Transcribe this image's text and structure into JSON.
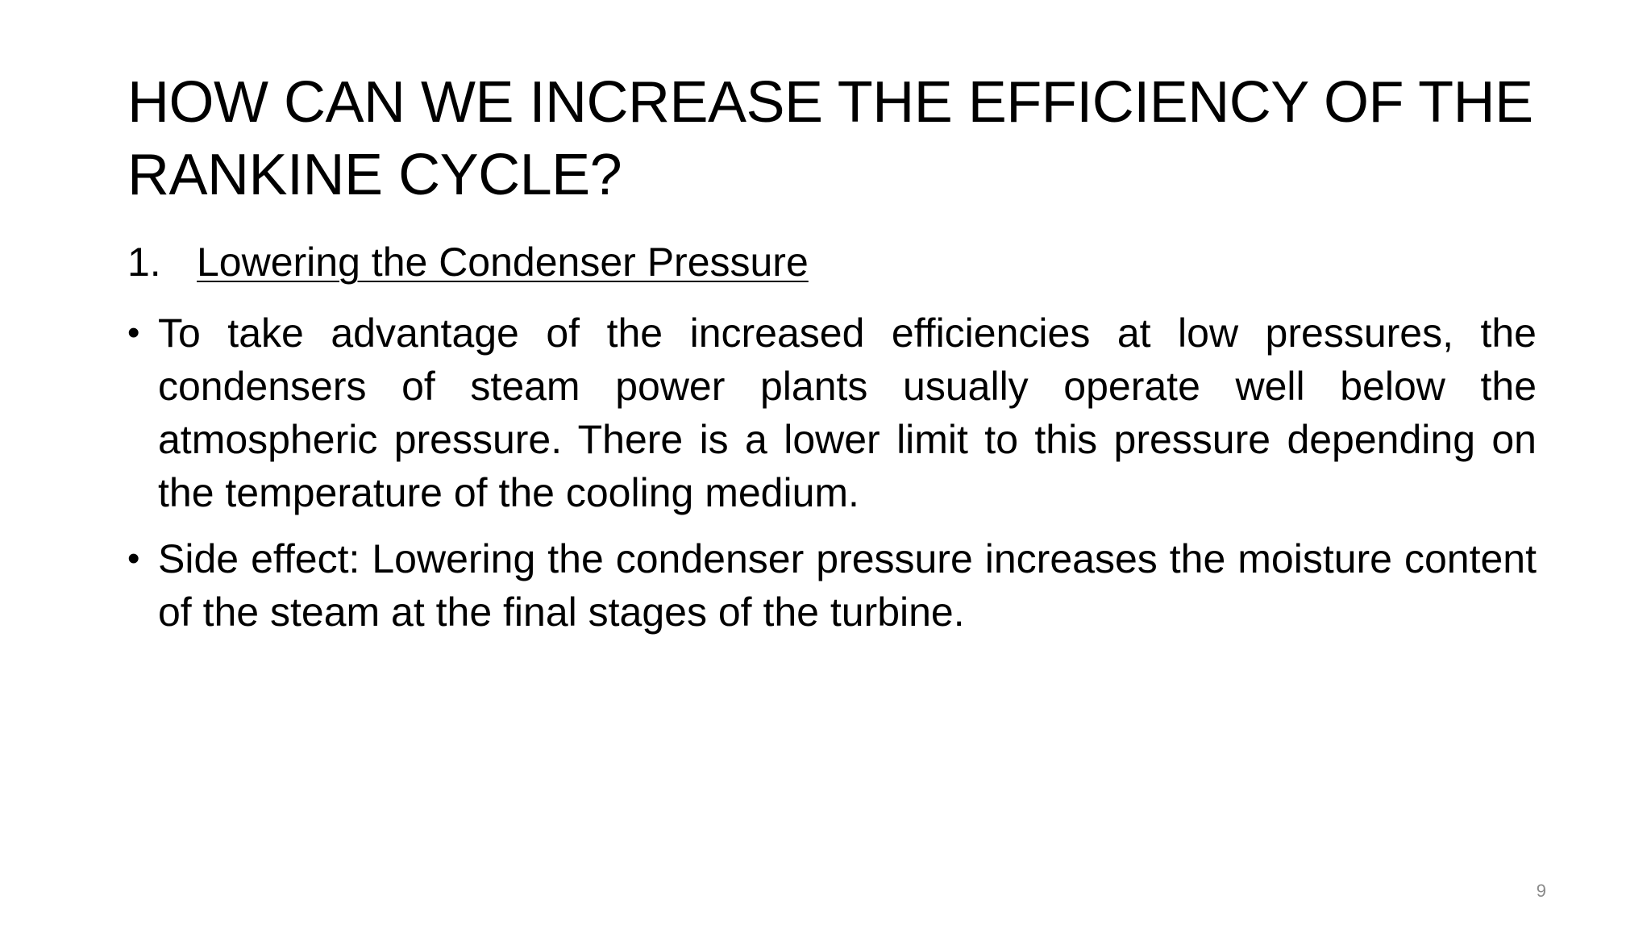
{
  "slide": {
    "title": "HOW CAN WE INCREASE THE EFFICIENCY OF THE RANKINE CYCLE?",
    "subheading": {
      "number": "1.",
      "text": "Lowering the Condenser Pressure"
    },
    "bullets": [
      {
        "marker": "•",
        "text": "To take advantage of the increased efficiencies at low pressures, the condensers of steam power plants usually operate well below the atmospheric pressure. There is a lower limit to this pressure depending on the temperature of the cooling medium."
      },
      {
        "marker": "•",
        "text": "Side effect: Lowering the condenser pressure increases the moisture content of the steam at the final stages of the turbine."
      }
    ],
    "page_number": "9"
  },
  "colors": {
    "background": "#ffffff",
    "text": "#000000",
    "page_number": "#8a8a8a"
  }
}
